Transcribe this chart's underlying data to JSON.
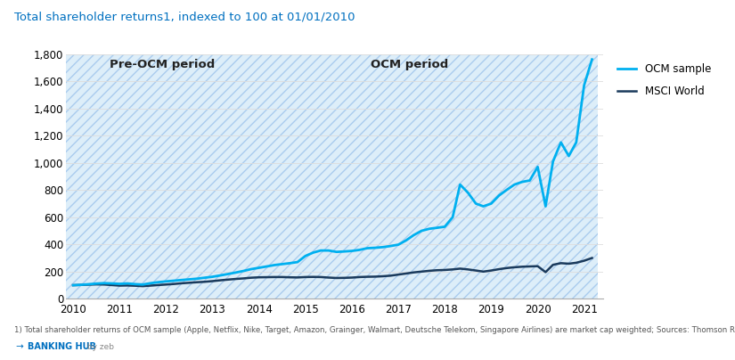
{
  "title_part1": "Total shareholder returns",
  "title_super": "1",
  "title_part2": ", indexed to 100 at 01/01/2010",
  "title_color": "#0070c0",
  "background_color": "#ffffff",
  "footnote": "1) Total shareholder returns of OCM sample (Apple, Netflix, Nike, Target, Amazon, Grainger, Walmart, Deutsche Telekom, Singapore Airlines) are market cap weighted; Sources: Thomson Reuters; zeb.research",
  "brand": "BANKING HUB",
  "brand_suffix": " by zeb",
  "ylim": [
    0,
    1800
  ],
  "yticks": [
    0,
    200,
    400,
    600,
    800,
    1000,
    1200,
    1400,
    1600,
    1800
  ],
  "xlim_start": 2009.85,
  "xlim_end": 2021.4,
  "pre_ocm_start": 2009.85,
  "pre_ocm_end": 2014.0,
  "ocm_start": 2014.0,
  "ocm_end": 2021.3,
  "pre_ocm_fill_color": "#ddeef9",
  "ocm_fill_color": "#ddeef9",
  "hatch_color": "#aaccee",
  "pre_ocm_label": "Pre-OCM period",
  "ocm_label": "OCM period",
  "ocm_sample_color": "#00b0f0",
  "msci_color": "#1a3a5c",
  "legend_labels": [
    "OCM sample",
    "MSCI World"
  ],
  "years": [
    2010.0,
    2010.17,
    2010.33,
    2010.5,
    2010.67,
    2010.83,
    2011.0,
    2011.17,
    2011.33,
    2011.5,
    2011.67,
    2011.83,
    2012.0,
    2012.17,
    2012.33,
    2012.5,
    2012.67,
    2012.83,
    2013.0,
    2013.17,
    2013.33,
    2013.5,
    2013.67,
    2013.83,
    2014.0,
    2014.17,
    2014.33,
    2014.5,
    2014.67,
    2014.83,
    2015.0,
    2015.17,
    2015.33,
    2015.5,
    2015.67,
    2015.83,
    2016.0,
    2016.17,
    2016.33,
    2016.5,
    2016.67,
    2016.83,
    2017.0,
    2017.17,
    2017.33,
    2017.5,
    2017.67,
    2017.83,
    2018.0,
    2018.17,
    2018.33,
    2018.5,
    2018.67,
    2018.83,
    2019.0,
    2019.17,
    2019.33,
    2019.5,
    2019.67,
    2019.83,
    2020.0,
    2020.17,
    2020.33,
    2020.5,
    2020.67,
    2020.83,
    2021.0,
    2021.17
  ],
  "ocm_values": [
    100,
    103,
    107,
    112,
    115,
    113,
    110,
    113,
    108,
    105,
    115,
    122,
    128,
    133,
    138,
    143,
    148,
    155,
    162,
    172,
    182,
    193,
    205,
    218,
    228,
    238,
    248,
    255,
    262,
    270,
    315,
    340,
    355,
    355,
    345,
    348,
    352,
    360,
    372,
    375,
    380,
    388,
    398,
    430,
    468,
    500,
    515,
    522,
    530,
    600,
    840,
    780,
    700,
    680,
    700,
    760,
    800,
    840,
    860,
    870,
    970,
    680,
    1010,
    1150,
    1050,
    1150,
    1570,
    1760
  ],
  "msci_values": [
    100,
    102,
    104,
    106,
    105,
    101,
    97,
    98,
    96,
    93,
    97,
    101,
    105,
    109,
    114,
    118,
    122,
    125,
    130,
    136,
    141,
    146,
    150,
    155,
    158,
    159,
    160,
    160,
    158,
    157,
    160,
    161,
    160,
    156,
    153,
    154,
    156,
    160,
    162,
    163,
    166,
    170,
    178,
    186,
    194,
    200,
    206,
    210,
    212,
    216,
    222,
    216,
    208,
    200,
    208,
    218,
    226,
    232,
    236,
    238,
    240,
    196,
    250,
    262,
    258,
    265,
    280,
    300
  ]
}
